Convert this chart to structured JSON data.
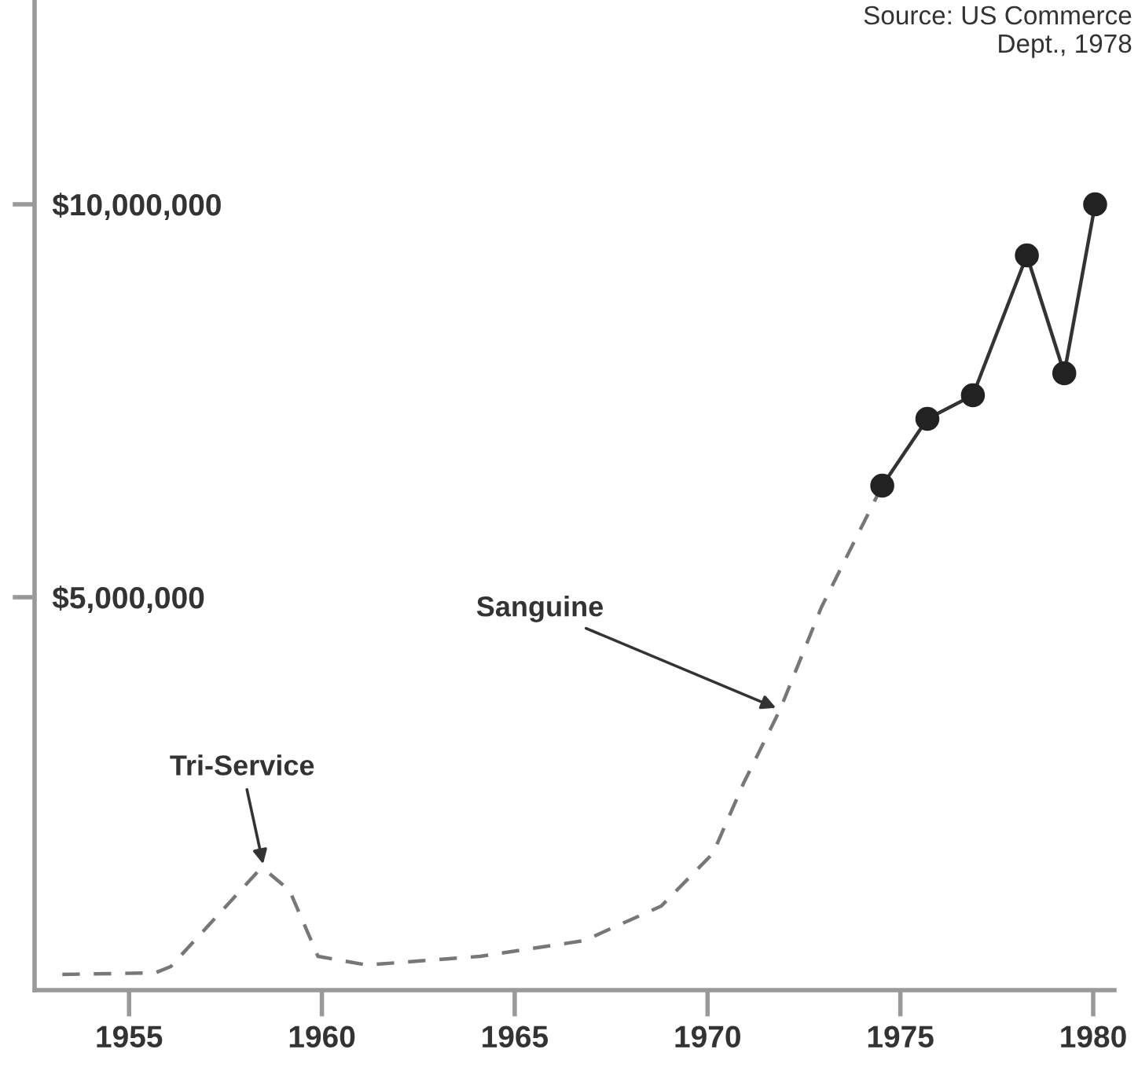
{
  "chart_data": {
    "type": "line",
    "annotations": [
      {
        "text": "Tri-Service",
        "x": 1958.5,
        "y": 1550000
      },
      {
        "text": "Sanguine",
        "x": 1971.88,
        "y": 3570000
      },
      "Source: US Commerce\nDept., 1978"
    ],
    "series": [
      {
        "color": "#777777",
        "line_style": "dashed",
        "marker": "none",
        "x": [
          1953.27,
          1955.68,
          1956.08,
          1958.36,
          1958.6,
          1959.16,
          1959.9,
          1961.17,
          1964.1,
          1966.8,
          1968.8,
          1970.14,
          1970.94,
          1971.88,
          1972.95,
          1974.53
        ],
        "values": [
          200000,
          220000,
          300000,
          1520000,
          1500000,
          1270000,
          430000,
          320000,
          430000,
          630000,
          1070000,
          1740000,
          2640000,
          3570000,
          4870000,
          6420000
        ]
      },
      {
        "color": "#333333",
        "line_style": "solid",
        "marker": "circle",
        "x": [
          1974.53,
          1975.7,
          1976.88,
          1978.28,
          1979.25,
          1980.05
        ],
        "values": [
          6420000,
          7270000,
          7570000,
          9350000,
          7850000,
          10000000
        ]
      }
    ],
    "xlim": [
      1952.55,
      1980.55
    ],
    "xticks": [
      1955,
      1960,
      1965,
      1970,
      1975,
      1980
    ],
    "ylim": [
      0,
      12600000
    ],
    "yticks": [
      {
        "value": 5000000,
        "label": "$5,000,000"
      },
      {
        "value": 10000000,
        "label": "$10,000,000"
      }
    ],
    "grid": false,
    "legend": false
  }
}
